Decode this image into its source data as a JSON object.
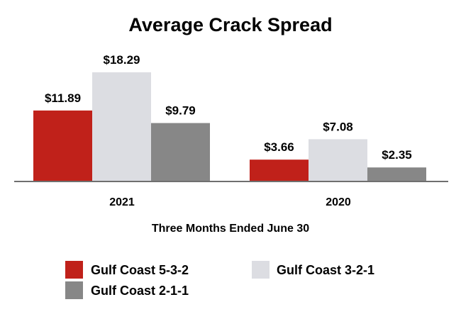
{
  "chart_data": {
    "type": "bar",
    "title": "Average Crack Spread",
    "xlabel": "Three Months Ended June 30",
    "ylabel": "",
    "categories": [
      "2021",
      "2020"
    ],
    "ylim": [
      0,
      20
    ],
    "grid": false,
    "legend_placement": "bottom",
    "series": [
      {
        "name": "Gulf Coast 5-3-2",
        "color": "#c0211a",
        "values": [
          11.89,
          3.66
        ],
        "labels": [
          "$11.89",
          "$3.66"
        ]
      },
      {
        "name": "Gulf Coast 3-2-1",
        "color": "#dcdde2",
        "values": [
          18.29,
          7.08
        ],
        "labels": [
          "$18.29",
          "$7.08"
        ]
      },
      {
        "name": "Gulf Coast 2-1-1",
        "color": "#878787",
        "values": [
          9.79,
          2.35
        ],
        "labels": [
          "$9.79",
          "$2.35"
        ]
      }
    ]
  }
}
